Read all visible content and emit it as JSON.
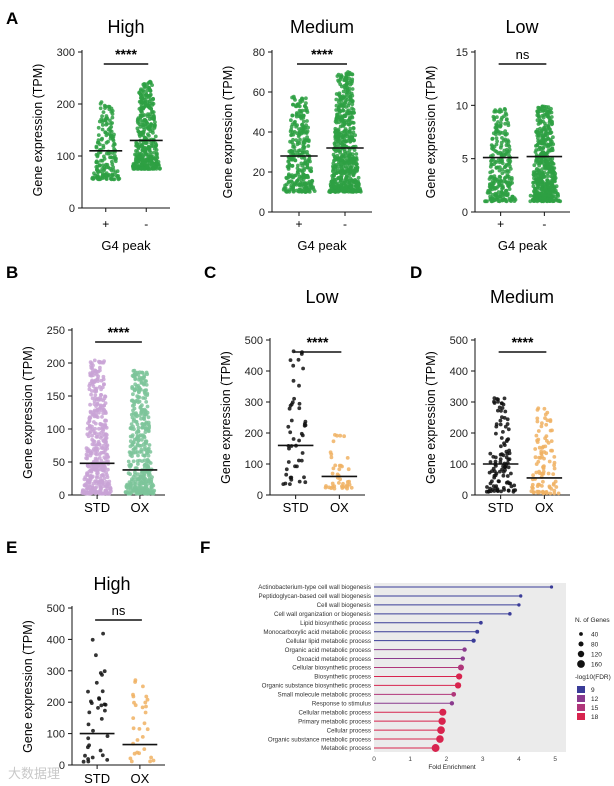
{
  "colors": {
    "green": "#2ea043",
    "purple": "#c9a3d6",
    "mint": "#7cc49a",
    "black": "#111111",
    "orange": "#f0b163",
    "lollipop_bg": "#ebebeb",
    "fdr_9": "#3a3c98",
    "fdr_12": "#8a3a8e",
    "fdr_15": "#b0367a",
    "fdr_18": "#d8244e"
  },
  "watermark": "大数据理",
  "chart_data": [
    {
      "id": "A1",
      "panel_letter": "A",
      "type": "scatter",
      "style": "strip",
      "title": "High",
      "ylabel": "Gene expression (TPM)",
      "xlabel": "G4 peak",
      "categories": [
        "+",
        "-"
      ],
      "ylim": [
        0,
        300
      ],
      "yticks": [
        0,
        100,
        200,
        300
      ],
      "significance": "****",
      "series": [
        {
          "name": "+",
          "n": 170,
          "min": 55,
          "max": 205,
          "median": 110,
          "color": "#2ea043"
        },
        {
          "name": "-",
          "n": 380,
          "min": 75,
          "max": 243,
          "median": 130,
          "color": "#2ea043"
        }
      ]
    },
    {
      "id": "A2",
      "type": "scatter",
      "style": "strip",
      "title": "Medium",
      "ylabel": "Gene expression (TPM)",
      "xlabel": "G4 peak",
      "categories": [
        "+",
        "-"
      ],
      "ylim": [
        0,
        80
      ],
      "yticks": [
        0,
        20,
        40,
        60,
        80
      ],
      "significance": "****",
      "series": [
        {
          "name": "+",
          "n": 300,
          "min": 10,
          "max": 58,
          "median": 28,
          "color": "#2ea043"
        },
        {
          "name": "-",
          "n": 600,
          "min": 10,
          "max": 70,
          "median": 32,
          "color": "#2ea043"
        }
      ]
    },
    {
      "id": "A3",
      "type": "scatter",
      "style": "strip",
      "title": "Low",
      "ylabel": "Gene expression (TPM)",
      "xlabel": "G4 peak",
      "categories": [
        "+",
        "-"
      ],
      "ylim": [
        0,
        15
      ],
      "yticks": [
        0,
        5,
        10,
        15
      ],
      "significance": "ns",
      "series": [
        {
          "name": "+",
          "n": 260,
          "min": 1,
          "max": 9.8,
          "median": 5.1,
          "color": "#2ea043"
        },
        {
          "name": "-",
          "n": 480,
          "min": 1,
          "max": 9.9,
          "median": 5.2,
          "color": "#2ea043"
        }
      ]
    },
    {
      "id": "B",
      "panel_letter": "B",
      "type": "scatter",
      "style": "strip",
      "title": "",
      "ylabel": "Gene expression (TPM)",
      "xlabel": "",
      "categories": [
        "STD",
        "OX"
      ],
      "ylim": [
        0,
        250
      ],
      "yticks": [
        0,
        50,
        100,
        150,
        200,
        250
      ],
      "significance": "****",
      "series": [
        {
          "name": "STD",
          "n": 420,
          "min": 2,
          "max": 205,
          "median": 48,
          "color": "#c9a3d6"
        },
        {
          "name": "OX",
          "n": 400,
          "min": 2,
          "max": 190,
          "median": 38,
          "color": "#7cc49a"
        }
      ]
    },
    {
      "id": "C",
      "panel_letter": "C",
      "type": "scatter",
      "style": "strip",
      "title": "Low",
      "ylabel": "Gene expression (TPM)",
      "xlabel": "",
      "categories": [
        "STD",
        "OX"
      ],
      "ylim": [
        0,
        500
      ],
      "yticks": [
        0,
        100,
        200,
        300,
        400,
        500
      ],
      "significance": "****",
      "series": [
        {
          "name": "STD",
          "n": 48,
          "min": 35,
          "max": 465,
          "median": 160,
          "color": "#111111"
        },
        {
          "name": "OX",
          "n": 42,
          "min": 20,
          "max": 195,
          "median": 60,
          "color": "#f0b163"
        }
      ]
    },
    {
      "id": "D",
      "panel_letter": "D",
      "type": "scatter",
      "style": "strip",
      "title": "Medium",
      "ylabel": "Gene expression (TPM)",
      "xlabel": "",
      "categories": [
        "STD",
        "OX"
      ],
      "ylim": [
        0,
        500
      ],
      "yticks": [
        0,
        100,
        200,
        300,
        400,
        500
      ],
      "significance": "****",
      "series": [
        {
          "name": "STD",
          "n": 110,
          "min": 10,
          "max": 330,
          "median": 100,
          "color": "#111111"
        },
        {
          "name": "OX",
          "n": 100,
          "min": 5,
          "max": 280,
          "median": 55,
          "color": "#f0b163"
        }
      ]
    },
    {
      "id": "E",
      "panel_letter": "E",
      "type": "scatter",
      "style": "strip",
      "title": "High",
      "ylabel": "Gene expression (TPM)",
      "xlabel": "",
      "categories": [
        "STD",
        "OX"
      ],
      "ylim": [
        0,
        500
      ],
      "yticks": [
        0,
        100,
        200,
        300,
        400,
        500
      ],
      "significance": "ns",
      "series": [
        {
          "name": "STD",
          "n": 34,
          "min": 10,
          "max": 435,
          "median": 100,
          "color": "#111111"
        },
        {
          "name": "OX",
          "n": 30,
          "min": 5,
          "max": 280,
          "median": 65,
          "color": "#f0b163"
        }
      ]
    },
    {
      "id": "F",
      "panel_letter": "F",
      "type": "bar",
      "style": "lollipop",
      "title": "",
      "xlabel": "Fold Enrichment",
      "ylabel": "",
      "xlim": [
        0,
        5.3
      ],
      "xticks": [
        0,
        1,
        2,
        3,
        4,
        5
      ],
      "categories": [
        "Actinobacterium-type cell wall biogenesis",
        "Peptidoglycan-based cell wall biogenesis",
        "Cell wall biogenesis",
        "Cell wall organization or biogenesis",
        "Lipid biosynthetic process",
        "Monocarboxylic acid metabolic process",
        "Cellular lipid metabolic process",
        "Organic acid metabolic process",
        "Oxoacid metabolic process",
        "Cellular biosynthetic process",
        "Biosynthetic process",
        "Organic substance biosynthetic process",
        "Small molecule metabolic process",
        "Response to stimulus",
        "Cellular metabolic process",
        "Primary metabolic process",
        "Cellular process",
        "Organic substance metabolic process",
        "Metabolic process"
      ],
      "values": [
        4.9,
        4.05,
        4.0,
        3.75,
        2.95,
        2.85,
        2.75,
        2.5,
        2.45,
        2.4,
        2.35,
        2.32,
        2.2,
        2.15,
        1.9,
        1.88,
        1.85,
        1.82,
        1.7
      ],
      "gene_counts": [
        25,
        28,
        30,
        35,
        40,
        45,
        55,
        60,
        62,
        110,
        115,
        118,
        70,
        60,
        140,
        150,
        160,
        155,
        165
      ],
      "fdr": [
        9,
        9,
        9,
        9,
        9,
        10,
        10,
        11,
        11,
        16,
        17,
        17,
        14,
        12,
        18,
        18,
        18,
        18,
        18
      ],
      "legend_size_title": "N. of Genes",
      "legend_size": [
        40,
        80,
        120,
        160
      ],
      "legend_color_title": "-log10(FDR)",
      "legend_color": [
        9,
        12,
        15,
        18
      ]
    }
  ]
}
